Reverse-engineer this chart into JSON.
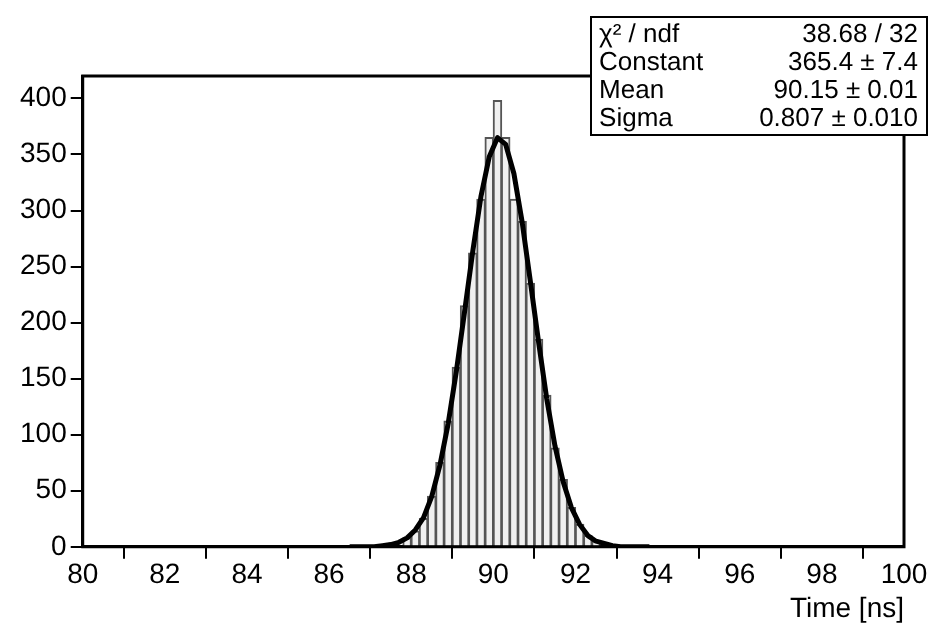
{
  "chart_data": {
    "type": "histogram",
    "xlabel": "Time [ns]",
    "bins": [
      87.4,
      87.6,
      87.8,
      88.0,
      88.2,
      88.4,
      88.6,
      88.8,
      89.0,
      89.2,
      89.4,
      89.6,
      89.8,
      90.0,
      90.2,
      90.4,
      90.6,
      90.8,
      91.0,
      91.2,
      91.4,
      91.6,
      91.8,
      92.0,
      92.2,
      92.4,
      92.6,
      92.8,
      93.0
    ],
    "series": [
      {
        "color": "#f0f0f0",
        "values": [
          null,
          null,
          8,
          14,
          25,
          45,
          75,
          112,
          160,
          215,
          262,
          310,
          365,
          398,
          365,
          310,
          290,
          235,
          185,
          135,
          88,
          60,
          35,
          20,
          10,
          5,
          null,
          null
        ]
      },
      {
        "type": "line",
        "color": "#000000",
        "x": [
          86.5,
          87.1,
          87.3,
          87.5,
          87.7,
          87.9,
          88.1,
          88.3,
          88.5,
          88.7,
          88.9,
          89.1,
          89.3,
          89.5,
          89.7,
          89.9,
          90.1,
          90.3,
          90.5,
          90.7,
          90.9,
          91.1,
          91.3,
          91.5,
          91.7,
          91.9,
          92.1,
          92.3,
          92.5,
          92.7,
          92.9,
          93.1,
          93.8
        ],
        "values": [
          0,
          0,
          1,
          2,
          4,
          8,
          15,
          26,
          45,
          73,
          110,
          157,
          210,
          264,
          313,
          348,
          365,
          359,
          333,
          290,
          237,
          183,
          132,
          90,
          58,
          35,
          20,
          10,
          5,
          3,
          1,
          0,
          0
        ]
      }
    ],
    "xlim": [
      80,
      100
    ],
    "xticks": [
      80,
      82,
      84,
      86,
      88,
      90,
      92,
      94,
      96,
      98,
      100
    ],
    "ylim": [
      0,
      420
    ],
    "yticks": [
      0,
      50,
      100,
      150,
      200,
      250,
      300,
      350,
      400
    ],
    "grid": false,
    "legend": false,
    "annotations": [
      "χ² / ndf",
      "38.68 / 32",
      "Constant",
      "365.4 ± 7.4",
      "Mean",
      "90.15 ± 0.01",
      "Sigma",
      "0.807 ± 0.010"
    ]
  }
}
